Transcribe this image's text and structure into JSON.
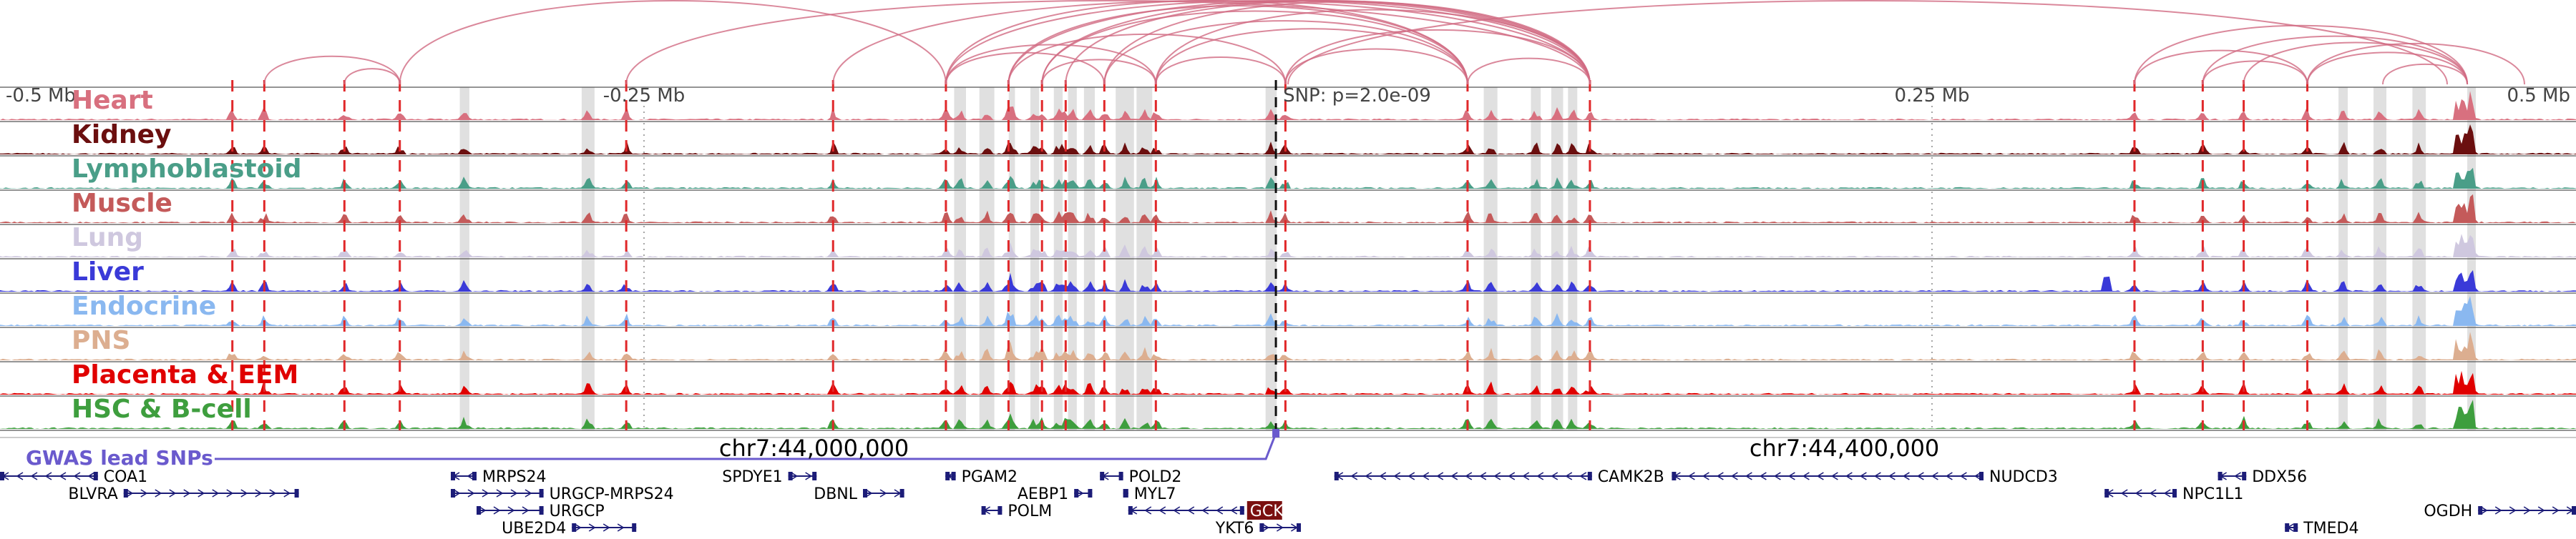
{
  "colors": {
    "arc": "#d16a82",
    "marker_red": "#e0282a",
    "highlight_band": "#cccccc",
    "gwas": "#6a5acd",
    "gene": "#1c1c78",
    "focus_gene_bg": "#7a1010",
    "axis": "#444444"
  },
  "region": {
    "start_mb": -0.5,
    "end_mb": 0.5
  },
  "scale_labels": [
    {
      "text": "-0.5 Mb",
      "pos": -0.5
    },
    {
      "text": "-0.25 Mb",
      "pos": -0.25
    },
    {
      "text": "0.25 Mb",
      "pos": 0.25
    },
    {
      "text": "0.5 Mb",
      "pos": 0.5
    }
  ],
  "snp_label": "SNP: p=2.0e-09",
  "snp_pos": -0.0047,
  "tracks": [
    {
      "name": "Heart",
      "color": "#d8707f"
    },
    {
      "name": "Kidney",
      "color": "#6b0f0f"
    },
    {
      "name": "Lymphoblastoid",
      "color": "#4a9e88"
    },
    {
      "name": "Muscle",
      "color": "#c45a5a"
    },
    {
      "name": "Lung",
      "color": "#cfc8df"
    },
    {
      "name": "Liver",
      "color": "#3a3ad8"
    },
    {
      "name": "Endocrine",
      "color": "#8ab8f0"
    },
    {
      "name": "PNS",
      "color": "#dcae90"
    },
    {
      "name": "Placenta & EEM",
      "color": "#e00000"
    },
    {
      "name": "HSC & B-cell",
      "color": "#3e9e3e"
    }
  ],
  "gwas_label": "GWAS lead SNPs",
  "coordinate_labels": [
    {
      "text": "chr7:44,000,000",
      "pos": -0.184
    },
    {
      "text": "chr7:44,400,000",
      "pos": 0.216
    }
  ],
  "red_markers": [
    -0.4098,
    -0.3974,
    -0.3663,
    -0.3448,
    -0.2569,
    -0.1766,
    -0.1328,
    -0.1085,
    -0.0955,
    -0.0863,
    -0.0713,
    -0.0513,
    -0.001,
    0.0697,
    0.1172,
    0.3286,
    0.3551,
    0.371,
    0.3957
  ],
  "gray_bands": [
    {
      "start": -0.3215,
      "end": -0.3178
    },
    {
      "start": -0.2742,
      "end": -0.2692
    },
    {
      "start": -0.1296,
      "end": -0.125
    },
    {
      "start": -0.1198,
      "end": -0.114
    },
    {
      "start": -0.1084,
      "end": -0.106
    },
    {
      "start": -0.1,
      "end": -0.0966
    },
    {
      "start": -0.0909,
      "end": -0.0875
    },
    {
      "start": -0.0854,
      "end": -0.082
    },
    {
      "start": -0.0792,
      "end": -0.075
    },
    {
      "start": -0.0669,
      "end": -0.0598
    },
    {
      "start": -0.0588,
      "end": -0.0527
    },
    {
      "start": -0.0087,
      "end": -0.0044
    },
    {
      "start": 0.076,
      "end": 0.0813
    },
    {
      "start": 0.0943,
      "end": 0.0981
    },
    {
      "start": 0.1022,
      "end": 0.1068
    },
    {
      "start": 0.1087,
      "end": 0.1123
    },
    {
      "start": 0.4078,
      "end": 0.4114
    },
    {
      "start": 0.4214,
      "end": 0.4264
    },
    {
      "start": 0.4365,
      "end": 0.4417
    },
    {
      "start": 0.4578,
      "end": 0.4611
    }
  ],
  "arcs": [
    {
      "a": -0.3974,
      "b": -0.3448
    },
    {
      "a": -0.3663,
      "b": -0.3448
    },
    {
      "a": -0.3448,
      "b": -0.1328
    },
    {
      "a": -0.2569,
      "b": 0.1172
    },
    {
      "a": -0.1328,
      "b": 0.1172
    },
    {
      "a": -0.1328,
      "b": -0.0713
    },
    {
      "a": -0.1328,
      "b": -0.0513
    },
    {
      "a": -0.1085,
      "b": -0.001
    },
    {
      "a": -0.1085,
      "b": 0.0697
    },
    {
      "a": -0.1085,
      "b": 0.1172
    },
    {
      "a": -0.0955,
      "b": -0.0513
    },
    {
      "a": -0.0955,
      "b": 0.0697
    },
    {
      "a": -0.0955,
      "b": 0.1172
    },
    {
      "a": -0.0863,
      "b": 0.1172
    },
    {
      "a": -0.0713,
      "b": 0.0697
    },
    {
      "a": -0.0713,
      "b": 0.1172
    },
    {
      "a": -0.0513,
      "b": 0.0697
    },
    {
      "a": -0.0513,
      "b": 0.1172
    },
    {
      "a": -0.0513,
      "b": -0.001
    },
    {
      "a": -0.001,
      "b": 0.1172
    },
    {
      "a": -0.001,
      "b": 0.0697
    },
    {
      "a": 0.0697,
      "b": 0.1172
    },
    {
      "a": -0.1328,
      "b": 0.0697
    },
    {
      "a": -0.1766,
      "b": 0.1172
    },
    {
      "a": 0.0,
      "b": 0.45
    },
    {
      "a": 0.3286,
      "b": 0.4578
    },
    {
      "a": 0.3551,
      "b": 0.4578
    },
    {
      "a": 0.371,
      "b": 0.4578
    },
    {
      "a": 0.3957,
      "b": 0.4578
    },
    {
      "a": 0.3957,
      "b": 0.48
    },
    {
      "a": 0.3286,
      "b": 0.3957
    },
    {
      "a": 0.3551,
      "b": 0.3957
    },
    {
      "a": 0.425,
      "b": 0.4578
    }
  ],
  "genes": [
    {
      "name": "COA1",
      "start": -0.5,
      "end": -0.462,
      "strand": "-",
      "row": 0,
      "label_side": "end"
    },
    {
      "name": "BLVRA",
      "start": -0.452,
      "end": -0.384,
      "strand": "+",
      "row": 1,
      "label_side": "start"
    },
    {
      "name": "MRPS24",
      "start": -0.325,
      "end": -0.315,
      "strand": "-",
      "row": 0,
      "label_side": "end"
    },
    {
      "name": "URGCP-MRPS24",
      "start": -0.325,
      "end": -0.289,
      "strand": "+",
      "row": 1,
      "label_side": "end"
    },
    {
      "name": "URGCP",
      "start": -0.315,
      "end": -0.289,
      "strand": "+",
      "row": 2,
      "label_side": "end"
    },
    {
      "name": "UBE2D4",
      "start": -0.278,
      "end": -0.253,
      "strand": "+",
      "row": 3,
      "label_side": "start"
    },
    {
      "name": "SPDYE1",
      "start": -0.194,
      "end": -0.183,
      "strand": "+",
      "row": 0,
      "label_side": "start"
    },
    {
      "name": "DBNL",
      "start": -0.165,
      "end": -0.149,
      "strand": "+",
      "row": 1,
      "label_side": "start"
    },
    {
      "name": "PGAM2",
      "start": -0.133,
      "end": -0.129,
      "strand": "-",
      "row": 0,
      "label_side": "end"
    },
    {
      "name": "AEBP1",
      "start": -0.083,
      "end": -0.076,
      "strand": "+",
      "row": 1,
      "label_side": "start"
    },
    {
      "name": "POLM",
      "start": -0.119,
      "end": -0.111,
      "strand": "-",
      "row": 2,
      "label_side": "end"
    },
    {
      "name": "POLD2",
      "start": -0.073,
      "end": -0.064,
      "strand": "-",
      "row": 0,
      "label_side": "end"
    },
    {
      "name": "MYL7",
      "start": -0.064,
      "end": -0.062,
      "strand": "-",
      "row": 1,
      "label_side": "end"
    },
    {
      "name": "GCK",
      "start": -0.062,
      "end": -0.017,
      "strand": "-",
      "row": 2,
      "label_side": "end",
      "focus": true
    },
    {
      "name": "YKT6",
      "start": -0.011,
      "end": 0.005,
      "strand": "+",
      "row": 3,
      "label_side": "start"
    },
    {
      "name": "CAMK2B",
      "start": 0.018,
      "end": 0.118,
      "strand": "-",
      "row": 0,
      "label_side": "end"
    },
    {
      "name": "NUDCD3",
      "start": 0.149,
      "end": 0.27,
      "strand": "-",
      "row": 0,
      "label_side": "end"
    },
    {
      "name": "NPC1L1",
      "start": 0.317,
      "end": 0.345,
      "strand": "-",
      "row": 1,
      "label_side": "end"
    },
    {
      "name": "DDX56",
      "start": 0.361,
      "end": 0.372,
      "strand": "-",
      "row": 0,
      "label_side": "end"
    },
    {
      "name": "OGDH",
      "start": 0.462,
      "end": 0.5,
      "strand": "+",
      "row": 2,
      "label_side": "start"
    },
    {
      "name": "TMED4",
      "start": 0.387,
      "end": 0.392,
      "strand": "-",
      "row": 3,
      "label_side": "end"
    }
  ]
}
